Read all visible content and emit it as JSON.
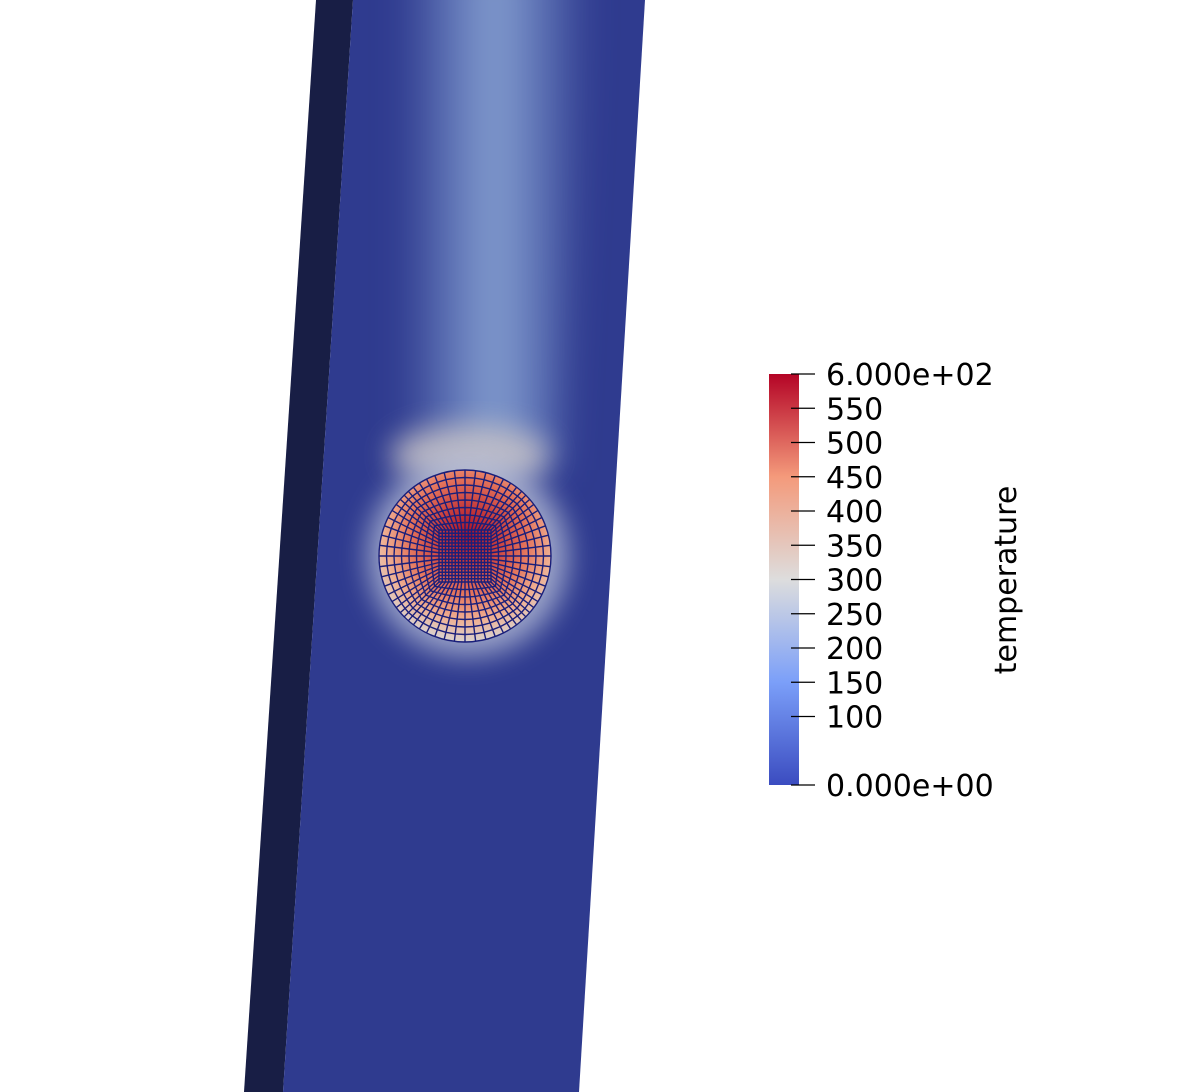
{
  "scene": {
    "background": "#ffffff",
    "slab_front_color": "#2f3b8f",
    "slab_side_color": "#181e45",
    "mesh_line_color": "#1a1f7a"
  },
  "colorbar": {
    "title": "temperature",
    "range": [
      0,
      600
    ],
    "colormap": "cool-warm",
    "stops": [
      {
        "value": 0,
        "color": "#3b4cc0"
      },
      {
        "value": 150,
        "color": "#7b9ff9"
      },
      {
        "value": 300,
        "color": "#dddddd"
      },
      {
        "value": 450,
        "color": "#f49a7b"
      },
      {
        "value": 600,
        "color": "#b40426"
      }
    ],
    "ticks": [
      {
        "value": 600,
        "label": "6.000e+02"
      },
      {
        "value": 550,
        "label": "550"
      },
      {
        "value": 500,
        "label": "500"
      },
      {
        "value": 450,
        "label": "450"
      },
      {
        "value": 400,
        "label": "400"
      },
      {
        "value": 350,
        "label": "350"
      },
      {
        "value": 300,
        "label": "300"
      },
      {
        "value": 250,
        "label": "250"
      },
      {
        "value": 200,
        "label": "200"
      },
      {
        "value": 150,
        "label": "150"
      },
      {
        "value": 100,
        "label": "100"
      },
      {
        "value": 0,
        "label": "0.000e+00"
      }
    ]
  }
}
